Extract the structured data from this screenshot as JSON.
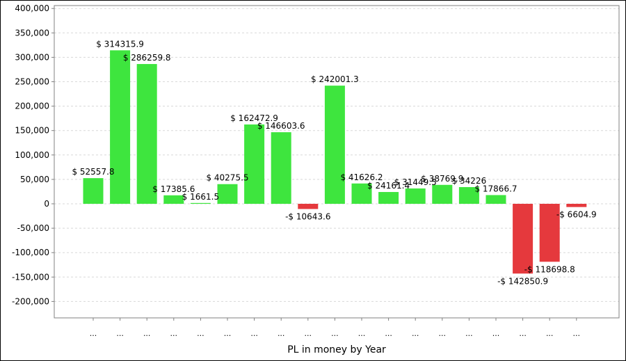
{
  "chart_data": {
    "type": "bar",
    "title": "",
    "xlabel": "PL in money by Year",
    "ylabel": "",
    "ylim": [
      -250000,
      400000
    ],
    "yticks": [
      400000,
      350000,
      300000,
      250000,
      200000,
      150000,
      100000,
      50000,
      0,
      -50000,
      -100000,
      -150000,
      -200000
    ],
    "ytick_labels": [
      "400,000",
      "350,000",
      "300,000",
      "250,000",
      "200,000",
      "150,000",
      "100,000",
      "50,000",
      "0",
      "-50,000",
      "-100,000",
      "-150,000",
      "-200,000"
    ],
    "grid": true,
    "legend": "none",
    "categories": [
      "...",
      "...",
      "...",
      "...",
      "...",
      "...",
      "...",
      "...",
      "...",
      "...",
      "...",
      "...",
      "...",
      "...",
      "...",
      "...",
      "...",
      "...",
      "..."
    ],
    "values": [
      52557.8,
      314315.9,
      286259.8,
      17385.6,
      1661.5,
      40275.5,
      162472.9,
      146603.6,
      -10643.6,
      242001.3,
      41626.2,
      24161.4,
      31449.5,
      38769.9,
      34226,
      17866.7,
      -142850.9,
      -118698.8,
      -6604.9
    ],
    "labels": [
      "$ 52557.8",
      "$ 314315.9",
      "$ 286259.8",
      "$ 17385.6",
      "$ 1661.5",
      "$ 40275.5",
      "$ 162472.9",
      "$ 146603.6",
      "-$ 10643.6",
      "$ 242001.3",
      "$ 41626.2",
      "$ 24161.4",
      "$ 31449.5",
      "$ 38769.9",
      "$ 34226",
      "$ 17866.7",
      "-$ 142850.9",
      "-$ 118698.8",
      "-$ 6604.9"
    ],
    "colors": {
      "positive": "#3ee53e",
      "negative": "#e5393d",
      "grid": "#d8d8d8",
      "axis": "#808080"
    }
  }
}
